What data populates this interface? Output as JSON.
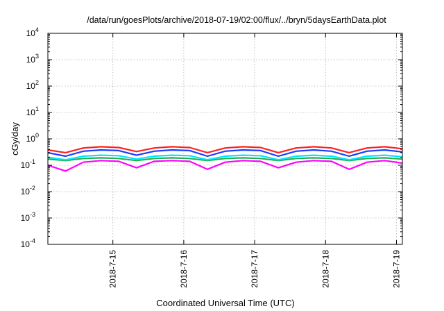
{
  "chart_data": {
    "type": "line",
    "title": "/data/run/goesPlots/archive/2018-07-19/02:00/flux/../bryn/5daysEarthData.plot",
    "xlabel": "Coordinated Universal Time (UTC)",
    "ylabel": "cGy/day",
    "yscale": "log",
    "ylim": [
      0.0001,
      10000
    ],
    "y_ticks": [
      {
        "base": "10",
        "exp": "-4",
        "value": 0.0001
      },
      {
        "base": "10",
        "exp": "-3",
        "value": 0.001
      },
      {
        "base": "10",
        "exp": "-2",
        "value": 0.01
      },
      {
        "base": "10",
        "exp": "-1",
        "value": 0.1
      },
      {
        "base": "10",
        "exp": "0",
        "value": 1
      },
      {
        "base": "10",
        "exp": "1",
        "value": 10
      },
      {
        "base": "10",
        "exp": "2",
        "value": 100
      },
      {
        "base": "10",
        "exp": "3",
        "value": 1000
      },
      {
        "base": "10",
        "exp": "4",
        "value": 10000
      }
    ],
    "xlim": [
      "2018-07-14 02:00",
      "2018-07-19 02:00"
    ],
    "x_ticks": [
      {
        "label": "2018-7-15",
        "value": "2018-07-15"
      },
      {
        "label": "2018-7-16",
        "value": "2018-07-16"
      },
      {
        "label": "2018-7-17",
        "value": "2018-07-17"
      },
      {
        "label": "2018-7-18",
        "value": "2018-07-18"
      },
      {
        "label": "2018-7-19",
        "value": "2018-07-19"
      }
    ],
    "grid": true,
    "legend": "none",
    "series": [
      {
        "color": "#ff2020",
        "x": [
          "2018-07-14 02:00",
          "2018-07-14 08:00",
          "2018-07-14 14:00",
          "2018-07-14 20:00",
          "2018-07-15 02:00",
          "2018-07-15 08:00",
          "2018-07-15 14:00",
          "2018-07-15 20:00",
          "2018-07-16 02:00",
          "2018-07-16 08:00",
          "2018-07-16 14:00",
          "2018-07-16 20:00",
          "2018-07-17 02:00",
          "2018-07-17 08:00",
          "2018-07-17 14:00",
          "2018-07-17 20:00",
          "2018-07-18 02:00",
          "2018-07-18 08:00",
          "2018-07-18 14:00",
          "2018-07-18 20:00",
          "2018-07-19 02:00"
        ],
        "y": [
          0.38,
          0.3,
          0.45,
          0.5,
          0.47,
          0.33,
          0.45,
          0.5,
          0.47,
          0.3,
          0.45,
          0.5,
          0.47,
          0.3,
          0.45,
          0.5,
          0.45,
          0.3,
          0.45,
          0.5,
          0.42
        ]
      },
      {
        "color": "#1a3cff",
        "x": [
          "2018-07-14 02:00",
          "2018-07-14 08:00",
          "2018-07-14 14:00",
          "2018-07-14 20:00",
          "2018-07-15 02:00",
          "2018-07-15 08:00",
          "2018-07-15 14:00",
          "2018-07-15 20:00",
          "2018-07-16 02:00",
          "2018-07-16 08:00",
          "2018-07-16 14:00",
          "2018-07-16 20:00",
          "2018-07-17 02:00",
          "2018-07-17 08:00",
          "2018-07-17 14:00",
          "2018-07-17 20:00",
          "2018-07-18 02:00",
          "2018-07-18 08:00",
          "2018-07-18 14:00",
          "2018-07-18 20:00",
          "2018-07-19 02:00"
        ],
        "y": [
          0.3,
          0.22,
          0.34,
          0.38,
          0.36,
          0.24,
          0.34,
          0.38,
          0.36,
          0.22,
          0.34,
          0.38,
          0.36,
          0.22,
          0.34,
          0.38,
          0.34,
          0.22,
          0.34,
          0.38,
          0.32
        ]
      },
      {
        "color": "#00e5ff",
        "x": [
          "2018-07-14 02:00",
          "2018-07-14 08:00",
          "2018-07-14 14:00",
          "2018-07-14 20:00",
          "2018-07-15 02:00",
          "2018-07-15 08:00",
          "2018-07-15 14:00",
          "2018-07-15 20:00",
          "2018-07-16 02:00",
          "2018-07-16 08:00",
          "2018-07-16 14:00",
          "2018-07-16 20:00",
          "2018-07-17 02:00",
          "2018-07-17 08:00",
          "2018-07-17 14:00",
          "2018-07-17 20:00",
          "2018-07-18 02:00",
          "2018-07-18 08:00",
          "2018-07-18 14:00",
          "2018-07-18 20:00",
          "2018-07-19 02:00"
        ],
        "y": [
          0.2,
          0.16,
          0.22,
          0.24,
          0.23,
          0.17,
          0.22,
          0.24,
          0.23,
          0.16,
          0.22,
          0.24,
          0.23,
          0.16,
          0.22,
          0.24,
          0.22,
          0.16,
          0.22,
          0.24,
          0.21
        ]
      },
      {
        "color": "#22b14c",
        "x": [
          "2018-07-14 02:00",
          "2018-07-14 08:00",
          "2018-07-14 14:00",
          "2018-07-14 20:00",
          "2018-07-15 02:00",
          "2018-07-15 08:00",
          "2018-07-15 14:00",
          "2018-07-15 20:00",
          "2018-07-16 02:00",
          "2018-07-16 08:00",
          "2018-07-16 14:00",
          "2018-07-16 20:00",
          "2018-07-17 02:00",
          "2018-07-17 08:00",
          "2018-07-17 14:00",
          "2018-07-17 20:00",
          "2018-07-18 02:00",
          "2018-07-18 08:00",
          "2018-07-18 14:00",
          "2018-07-18 20:00",
          "2018-07-19 02:00"
        ],
        "y": [
          0.17,
          0.15,
          0.18,
          0.19,
          0.18,
          0.15,
          0.18,
          0.19,
          0.18,
          0.15,
          0.18,
          0.19,
          0.18,
          0.15,
          0.18,
          0.19,
          0.18,
          0.15,
          0.18,
          0.19,
          0.17
        ]
      },
      {
        "color": "#ff00ff",
        "x": [
          "2018-07-14 02:00",
          "2018-07-14 08:00",
          "2018-07-14 14:00",
          "2018-07-14 20:00",
          "2018-07-15 02:00",
          "2018-07-15 08:00",
          "2018-07-15 14:00",
          "2018-07-15 20:00",
          "2018-07-16 02:00",
          "2018-07-16 08:00",
          "2018-07-16 14:00",
          "2018-07-16 20:00",
          "2018-07-17 02:00",
          "2018-07-17 08:00",
          "2018-07-17 14:00",
          "2018-07-17 20:00",
          "2018-07-18 02:00",
          "2018-07-18 08:00",
          "2018-07-18 14:00",
          "2018-07-18 20:00",
          "2018-07-19 02:00"
        ],
        "y": [
          0.1,
          0.06,
          0.13,
          0.15,
          0.14,
          0.08,
          0.14,
          0.15,
          0.14,
          0.07,
          0.13,
          0.15,
          0.14,
          0.08,
          0.13,
          0.15,
          0.14,
          0.07,
          0.13,
          0.15,
          0.12
        ]
      }
    ]
  }
}
